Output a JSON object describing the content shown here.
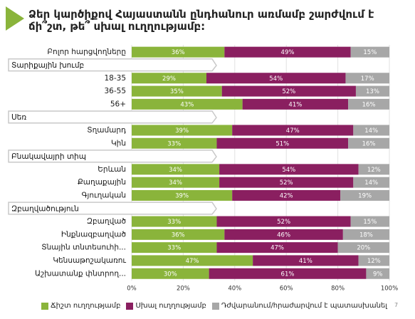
{
  "title": "Ձեր կարծիքով Հայաստանն ընդհանուր առմամբ շարժվում է ճի՞շտ, թե՞ սխալ ուղղությամբ:",
  "colors": {
    "correct": "#8ab43b",
    "wrong": "#8a1f60",
    "unsure": "#a7a7a7",
    "group_box": "#c9c9c9",
    "accent": "#8ab43b"
  },
  "page_number": "7",
  "chart_data": {
    "type": "bar",
    "stacked": true,
    "orientation": "horizontal",
    "xlim": [
      0,
      100
    ],
    "x_ticks": [
      "0%",
      "20%",
      "40%",
      "60%",
      "80%",
      "100%"
    ],
    "grid": true,
    "legend_position": "bottom",
    "series": [
      {
        "name": "Ճիշտ ուղղությամբ",
        "color": "#8ab43b"
      },
      {
        "name": "Սխալ ուղղությամբ",
        "color": "#8a1f60"
      },
      {
        "name": "Դժվարանում/հրաժարվում է պատասխանել",
        "color": "#a7a7a7"
      }
    ],
    "rows": [
      {
        "kind": "bar",
        "label": "Բոլոր հարցվողները",
        "values": [
          36,
          49,
          15
        ]
      },
      {
        "kind": "group",
        "label": "Տարիքային խումբ"
      },
      {
        "kind": "bar",
        "label": "18-35",
        "values": [
          29,
          54,
          17
        ]
      },
      {
        "kind": "bar",
        "label": "36-55",
        "values": [
          35,
          52,
          13
        ]
      },
      {
        "kind": "bar",
        "label": "56+",
        "values": [
          43,
          41,
          16
        ]
      },
      {
        "kind": "group",
        "label": "Սեռ"
      },
      {
        "kind": "bar",
        "label": "Տղամարդ",
        "values": [
          39,
          47,
          14
        ]
      },
      {
        "kind": "bar",
        "label": "Կին",
        "values": [
          33,
          51,
          16
        ]
      },
      {
        "kind": "group",
        "label": "Բնակավայրի տիպ"
      },
      {
        "kind": "bar",
        "label": "Երևան",
        "values": [
          34,
          54,
          12
        ]
      },
      {
        "kind": "bar",
        "label": "Քաղաքային",
        "values": [
          34,
          52,
          14
        ]
      },
      {
        "kind": "bar",
        "label": "Գյուղական",
        "values": [
          39,
          42,
          19
        ]
      },
      {
        "kind": "group",
        "label": "Զբաղվածություն"
      },
      {
        "kind": "bar",
        "label": "Զբաղված",
        "values": [
          33,
          52,
          15
        ]
      },
      {
        "kind": "bar",
        "label": "Ինքնազբաղված",
        "values": [
          36,
          46,
          18
        ]
      },
      {
        "kind": "bar",
        "label": "Տնային տնտեսուհի...",
        "values": [
          33,
          47,
          20
        ]
      },
      {
        "kind": "bar",
        "label": "Կենսաթոշակառու",
        "values": [
          47,
          41,
          12
        ]
      },
      {
        "kind": "bar",
        "label": "Աշխատանք փնտրող...",
        "values": [
          30,
          61,
          9
        ]
      }
    ]
  }
}
